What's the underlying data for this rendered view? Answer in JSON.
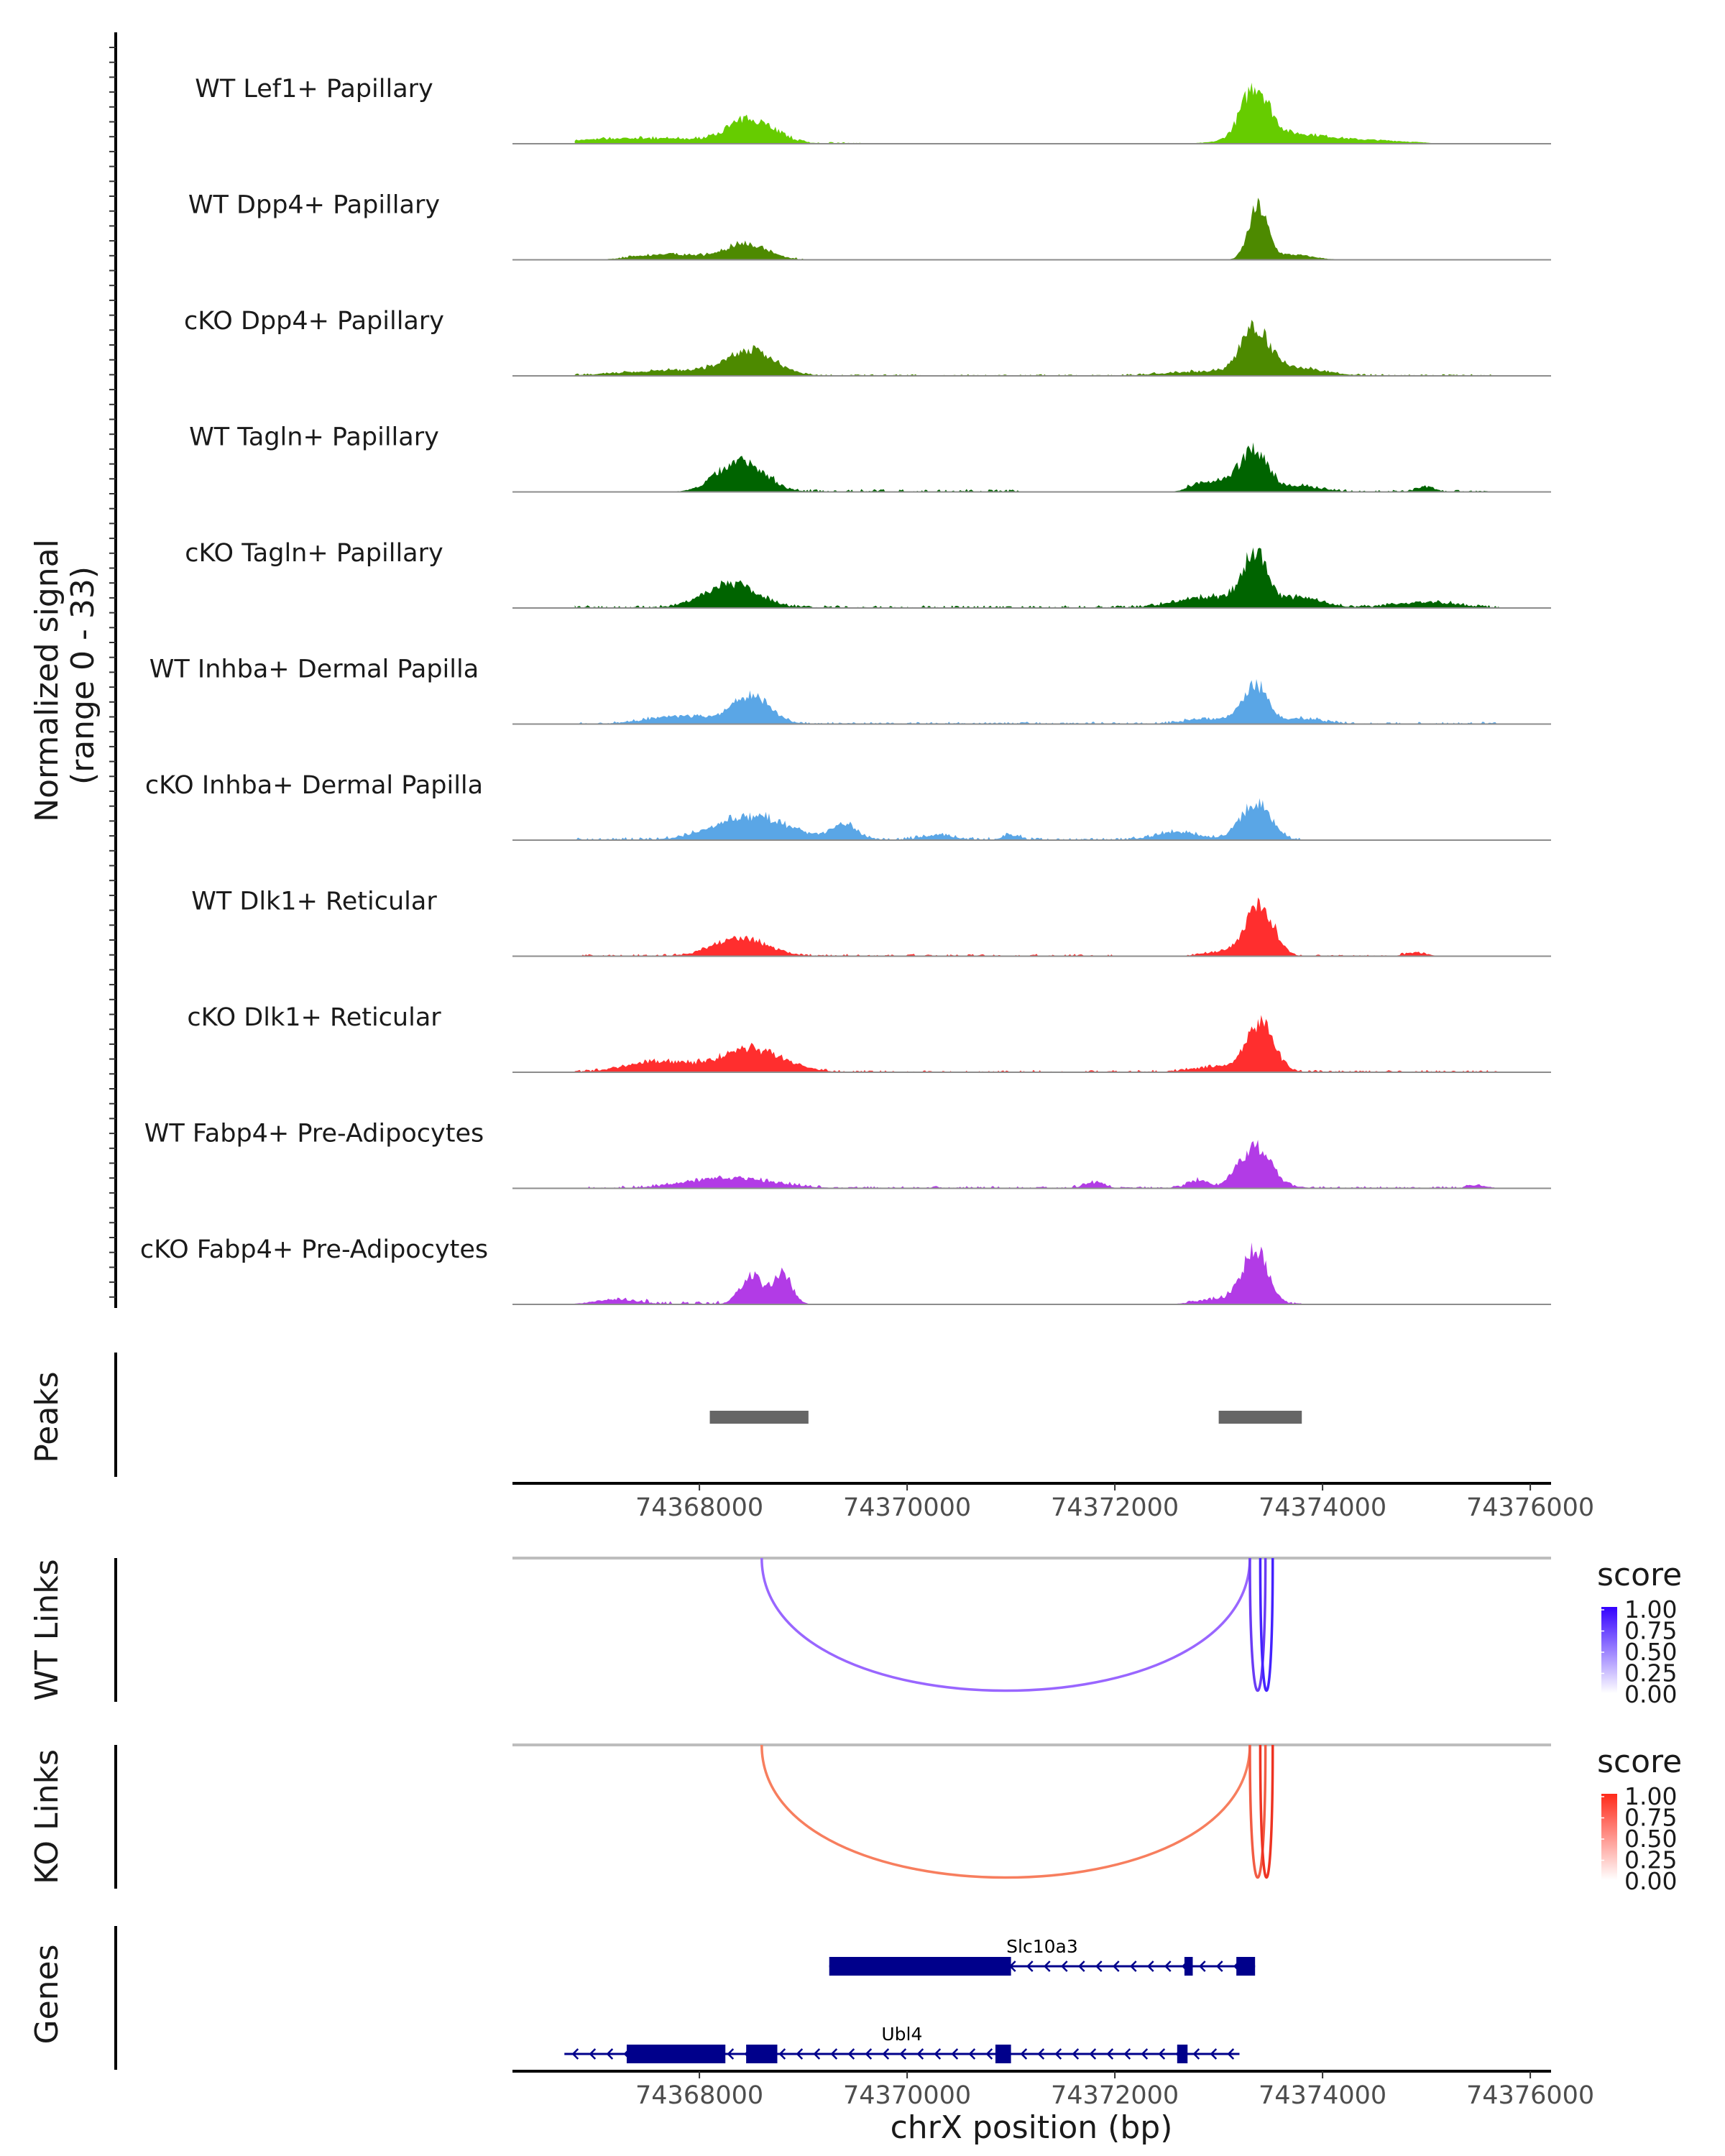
{
  "chart_data": {
    "type": "genome-browser",
    "chromosome": "chrX",
    "xlabel": "chrX position (bp)",
    "xlim": [
      74366200,
      74376200
    ],
    "x_ticks": [
      74368000,
      74370000,
      74372000,
      74374000,
      74376000
    ],
    "x_tick_labels": [
      "74368000",
      "74370000",
      "74372000",
      "74374000",
      "74376000"
    ],
    "coverage": {
      "ylabel": "Normalized signal\n(range 0 - 33)",
      "ylabel_lines": [
        "Normalized signal",
        "(range 0 - 33)"
      ],
      "range": [
        0,
        33
      ],
      "tracks": [
        {
          "name": "WT Lef1+ Papillary",
          "color": "#66cc00",
          "peaks": [
            [
              74368500,
              220,
              0.45
            ],
            [
              74373350,
              130,
              1.0
            ],
            [
              74367400,
              700,
              0.1
            ],
            [
              74373700,
              400,
              0.2
            ],
            [
              74374600,
              300,
              0.05
            ]
          ],
          "noise": [
            [
              74367000,
              74369600,
              0.03
            ]
          ]
        },
        {
          "name": "WT Dpp4+ Papillary",
          "color": "#4d8a00",
          "peaks": [
            [
              74368450,
              200,
              0.3
            ],
            [
              74373380,
              90,
              1.0
            ],
            [
              74367700,
              300,
              0.1
            ],
            [
              74373700,
              200,
              0.1
            ]
          ],
          "noise": [
            [
              74367200,
              74369000,
              0.03
            ]
          ]
        },
        {
          "name": "cKO Dpp4+ Papillary",
          "color": "#4d8a00",
          "peaks": [
            [
              74368500,
              230,
              0.45
            ],
            [
              74373350,
              130,
              0.85
            ],
            [
              74367800,
              500,
              0.1
            ],
            [
              74372900,
              400,
              0.08
            ],
            [
              74373700,
              300,
              0.15
            ]
          ],
          "noise": [
            [
              74366800,
              74375700,
              0.03
            ]
          ]
        },
        {
          "name": "WT Tagln+ Papillary",
          "color": "#006400",
          "peaks": [
            [
              74368400,
              220,
              0.6
            ],
            [
              74373350,
              130,
              0.7
            ],
            [
              74373100,
              200,
              0.2
            ],
            [
              74372800,
              100,
              0.1
            ],
            [
              74373800,
              200,
              0.1
            ],
            [
              74375000,
              80,
              0.1
            ]
          ],
          "noise": [
            [
              74368000,
              74371100,
              0.05
            ],
            [
              74372700,
              74375600,
              0.04
            ]
          ]
        },
        {
          "name": "cKO Tagln+ Papillary",
          "color": "#006400",
          "peaks": [
            [
              74368300,
              250,
              0.45
            ],
            [
              74373350,
              120,
              1.0
            ],
            [
              74372900,
              300,
              0.2
            ],
            [
              74373800,
              200,
              0.2
            ],
            [
              74375000,
              300,
              0.1
            ]
          ],
          "noise": [
            [
              74366700,
              74375700,
              0.05
            ]
          ]
        },
        {
          "name": "WT Inhba+ Dermal Papilla",
          "color": "#5aa6e6",
          "peaks": [
            [
              74368500,
              180,
              0.55
            ],
            [
              74373350,
              120,
              0.75
            ],
            [
              74367800,
              300,
              0.15
            ],
            [
              74372900,
              200,
              0.1
            ],
            [
              74373800,
              200,
              0.1
            ]
          ],
          "noise": [
            [
              74366700,
              74375700,
              0.04
            ]
          ]
        },
        {
          "name": "cKO Inhba+ Dermal Papilla",
          "color": "#5aa6e6",
          "peaks": [
            [
              74368500,
              350,
              0.45
            ],
            [
              74369400,
              120,
              0.3
            ],
            [
              74373350,
              140,
              0.7
            ],
            [
              74372600,
              200,
              0.15
            ],
            [
              74370300,
              150,
              0.1
            ],
            [
              74371000,
              80,
              0.1
            ]
          ],
          "noise": [
            [
              74366700,
              74373800,
              0.05
            ]
          ]
        },
        {
          "name": "WT Dlk1+ Reticular",
          "color": "#ff2e2e",
          "peaks": [
            [
              74368400,
              250,
              0.35
            ],
            [
              74373400,
              130,
              0.95
            ],
            [
              74373100,
              200,
              0.1
            ],
            [
              74374900,
              100,
              0.07
            ]
          ],
          "noise": [
            [
              74366700,
              74372000,
              0.04
            ],
            [
              74372700,
              74375000,
              0.03
            ]
          ]
        },
        {
          "name": "cKO Dlk1+ Reticular",
          "color": "#ff2e2e",
          "peaks": [
            [
              74368500,
              300,
              0.45
            ],
            [
              74367600,
              300,
              0.2
            ],
            [
              74373400,
              130,
              0.95
            ],
            [
              74373000,
              250,
              0.1
            ]
          ],
          "noise": [
            [
              74366700,
              74375700,
              0.04
            ]
          ]
        },
        {
          "name": "WT Fabp4+ Pre-Adipocytes",
          "color": "#b23be6",
          "peaks": [
            [
              74368300,
              400,
              0.2
            ],
            [
              74373350,
              150,
              0.8
            ],
            [
              74372800,
              100,
              0.15
            ],
            [
              74371800,
              100,
              0.1
            ],
            [
              74375500,
              100,
              0.05
            ]
          ],
          "noise": [
            [
              74366900,
              74375600,
              0.04
            ]
          ]
        },
        {
          "name": "cKO Fabp4+ Pre-Adipocytes",
          "color": "#b23be6",
          "peaks": [
            [
              74368500,
              110,
              0.55
            ],
            [
              74368800,
              90,
              0.6
            ],
            [
              74373350,
              120,
              1.05
            ],
            [
              74367200,
              200,
              0.1
            ],
            [
              74373000,
              200,
              0.1
            ]
          ],
          "noise": [
            [
              74367200,
              74368200,
              0.06
            ],
            [
              74372700,
              74373800,
              0.04
            ]
          ]
        }
      ]
    },
    "peaks_track": {
      "label": "Peaks",
      "color": "#666666",
      "regions": [
        [
          74368100,
          74369050
        ],
        [
          74373000,
          74373800
        ]
      ]
    },
    "links": [
      {
        "label": "WT Links",
        "legend_title": "score",
        "scale_low": "#ffffff",
        "scale_high": "#3300ff",
        "legend_ticks": [
          "1.00",
          "0.75",
          "0.50",
          "0.25",
          "0.00"
        ],
        "arcs": [
          {
            "start": 74368600,
            "end": 74373300,
            "score": 0.6,
            "color": "#9966ff"
          },
          {
            "start": 74373300,
            "end": 74373450,
            "score": 0.8,
            "color": "#6a3cf5"
          },
          {
            "start": 74373400,
            "end": 74373520,
            "score": 0.95,
            "color": "#4422ff"
          }
        ]
      },
      {
        "label": "KO Links",
        "legend_title": "score",
        "scale_low": "#ffffff",
        "scale_high": "#ff2a1a",
        "legend_ticks": [
          "1.00",
          "0.75",
          "0.50",
          "0.25",
          "0.00"
        ],
        "arcs": [
          {
            "start": 74368600,
            "end": 74373300,
            "score": 0.55,
            "color": "#f77e5e"
          },
          {
            "start": 74373300,
            "end": 74373450,
            "score": 0.75,
            "color": "#f25c44"
          },
          {
            "start": 74373400,
            "end": 74373520,
            "score": 0.9,
            "color": "#ee3322"
          }
        ]
      }
    ],
    "genes": {
      "label": "Genes",
      "color": "#00008b",
      "items": [
        {
          "name": "Slc10a3",
          "start": 74369250,
          "end": 74373350,
          "strand": "-",
          "exons": [
            [
              74369250,
              74371000
            ],
            [
              74372670,
              74372750
            ],
            [
              74373170,
              74373350
            ]
          ],
          "label_pos": 74371300
        },
        {
          "name": "Ubl4",
          "start": 74366700,
          "end": 74373200,
          "strand": "-",
          "exons": [
            [
              74367300,
              74368250
            ],
            [
              74368450,
              74368750
            ],
            [
              74370850,
              74371000
            ],
            [
              74372600,
              74372700
            ]
          ],
          "label_pos": 74369950
        }
      ]
    }
  }
}
